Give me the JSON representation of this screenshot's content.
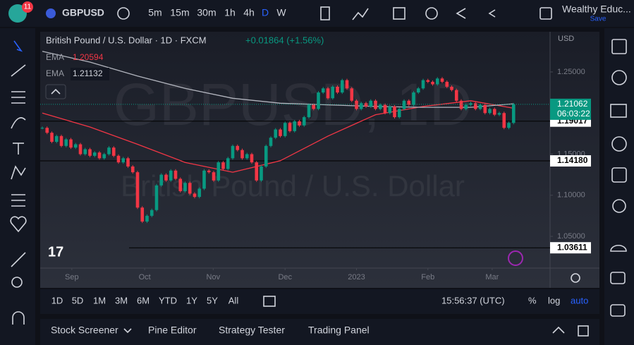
{
  "toolbar": {
    "badge": "11",
    "symbol": "GBPUSD",
    "intervals": [
      "5m",
      "15m",
      "30m",
      "1h",
      "4h",
      "D",
      "W"
    ],
    "account": "Wealthy Educ...",
    "save": "Save"
  },
  "legend": {
    "title": "British Pound / U.S. Dollar · 1D · FXCM",
    "change": "+0.01864 (+1.56%)",
    "ema_label": "EMA",
    "ema_values": [
      "1.20594",
      "1.21132"
    ]
  },
  "watermark": {
    "symbol": "GBPUSD, 1D",
    "name": "British Pound / U.S. Dollar"
  },
  "currency": "USD",
  "chart_data": {
    "type": "candlestick",
    "closes": [
      1.182,
      1.176,
      1.165,
      1.172,
      1.16,
      1.168,
      1.158,
      1.162,
      1.15,
      1.156,
      1.148,
      1.152,
      1.145,
      1.15,
      1.158,
      1.148,
      1.14,
      1.145,
      1.135,
      1.128,
      1.085,
      1.068,
      1.075,
      1.082,
      1.112,
      1.125,
      1.118,
      1.13,
      1.12,
      1.105,
      1.115,
      1.102,
      1.098,
      1.108,
      1.13,
      1.128,
      1.118,
      1.14,
      1.132,
      1.145,
      1.16,
      1.155,
      1.145,
      1.15,
      1.14,
      1.118,
      1.135,
      1.16,
      1.17,
      1.18,
      1.172,
      1.188,
      1.178,
      1.19,
      1.185,
      1.195,
      1.21,
      1.205,
      1.225,
      1.23,
      1.218,
      1.232,
      1.225,
      1.24,
      1.23,
      1.215,
      1.205,
      1.212,
      1.208,
      1.215,
      1.205,
      1.21,
      1.2,
      1.208,
      1.195,
      1.205,
      1.215,
      1.21,
      1.225,
      1.23,
      1.24,
      1.238,
      1.235,
      1.242,
      1.238,
      1.232,
      1.228,
      1.215,
      1.205,
      1.21,
      1.212,
      1.205,
      1.21,
      1.2,
      1.205,
      1.198,
      1.2,
      1.182,
      1.188,
      1.2106
    ],
    "up_color": "#089981",
    "down_color": "#f23645",
    "series": [
      {
        "name": "EMA",
        "color": "#f23645",
        "x": [
          0,
          10,
          20,
          30,
          40,
          50,
          60,
          70,
          80,
          90,
          99
        ],
        "values": [
          1.2,
          1.183,
          1.162,
          1.14,
          1.128,
          1.142,
          1.172,
          1.198,
          1.208,
          1.215,
          1.2059
        ]
      },
      {
        "name": "EMA",
        "color": "#b2b5be",
        "x": [
          0,
          10,
          20,
          30,
          40,
          50,
          60,
          70,
          80,
          90,
          99
        ],
        "values": [
          1.275,
          1.262,
          1.245,
          1.23,
          1.218,
          1.212,
          1.21,
          1.208,
          1.207,
          1.207,
          1.2113
        ]
      }
    ],
    "xticks": [
      {
        "value": 6.2,
        "label": "Sep"
      },
      {
        "value": 21.5,
        "label": "Oct"
      },
      {
        "value": 35.9,
        "label": "Nov"
      },
      {
        "value": 51,
        "label": "Dec"
      },
      {
        "value": 66,
        "label": "2023"
      },
      {
        "value": 81,
        "label": "Feb"
      },
      {
        "value": 94.5,
        "label": "Mar"
      }
    ],
    "ylim": [
      1.0114,
      1.2989
    ],
    "yticks": [
      {
        "value": 1.25,
        "label": "1.25000"
      },
      {
        "value": 1.15,
        "label": "1.15000"
      },
      {
        "value": 1.1,
        "label": "1.10000"
      },
      {
        "value": 1.05,
        "label": "1.05000"
      }
    ],
    "levels": [
      {
        "value": 1.19017,
        "label": "1.19017"
      },
      {
        "value": 1.1418,
        "label": "1.14180"
      },
      {
        "value": 1.03611,
        "label": "1.03611"
      }
    ],
    "last": {
      "value": 1.21062,
      "label": "1.21062",
      "countdown": "06:03:22"
    }
  },
  "range_bar": {
    "ranges": [
      "1D",
      "5D",
      "1M",
      "3M",
      "6M",
      "YTD",
      "1Y",
      "5Y",
      "All"
    ],
    "clock": "15:56:37 (UTC)",
    "percent": "%",
    "log": "log",
    "auto": "auto"
  },
  "bottom_panel": [
    "Stock Screener",
    "Pine Editor",
    "Strategy Tester",
    "Trading Panel"
  ]
}
